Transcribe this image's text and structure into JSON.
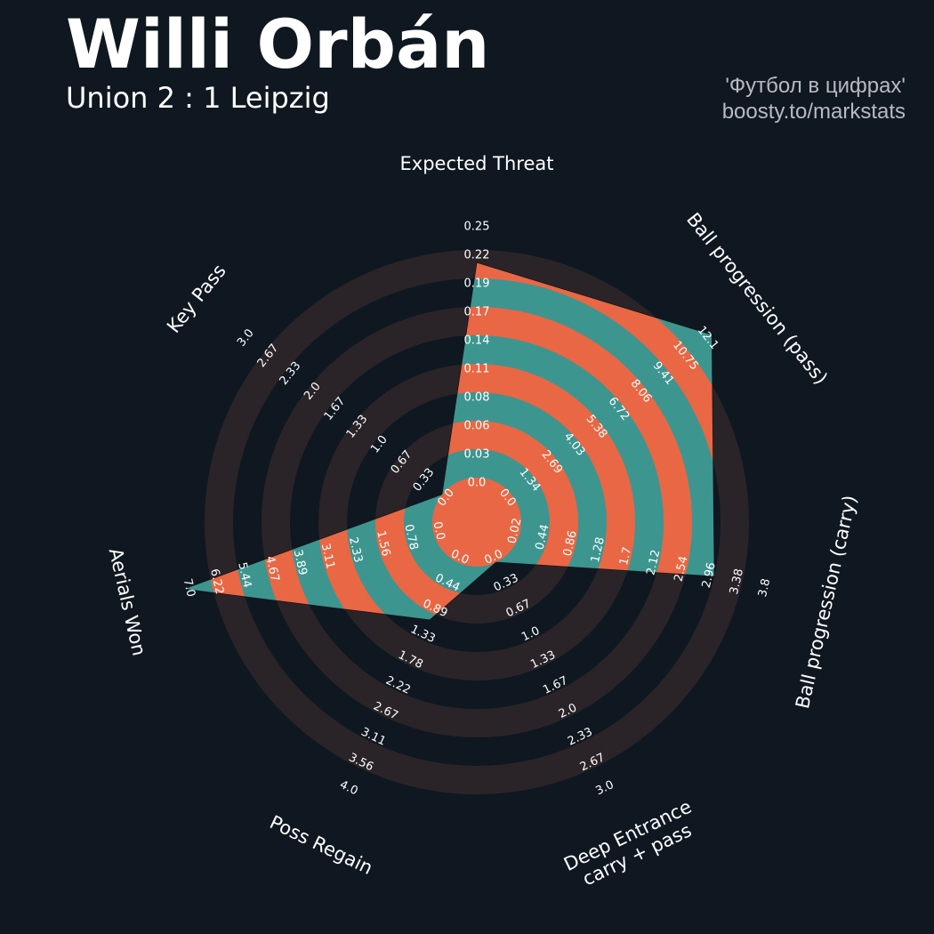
{
  "header": {
    "title": "Willi Orbán",
    "subtitle": "Union 2 : 1 Leipzig",
    "credit_line1": "'Футбол в цифрах'",
    "credit_line2": "boosty.to/markstats"
  },
  "colors": {
    "background": "#0f1820",
    "ring": "#2a2429",
    "band_a": "#e96744",
    "band_b": "#3d9590",
    "text": "#ffffff"
  },
  "chart_data": {
    "type": "radar",
    "title": "Willi Orbán",
    "subtitle": "Union 2 : 1 Leipzig",
    "player": "Willi Orbán",
    "match": "Union 2 : 1 Leipzig",
    "metrics": [
      {
        "label": "Expected Threat",
        "value": 0.21,
        "min": 0.0,
        "max": 0.25,
        "ticks": [
          "0.0",
          "0.03",
          "0.06",
          "0.08",
          "0.11",
          "0.14",
          "0.17",
          "0.19",
          "0.22",
          "0.25"
        ]
      },
      {
        "label": "Ball progression (pass)",
        "value": 12.1,
        "min": 0.0,
        "max": 12.1,
        "ticks": [
          "0.0",
          "1.34",
          "2.69",
          "4.03",
          "5.38",
          "6.72",
          "8.06",
          "9.41",
          "10.75",
          "12.1"
        ]
      },
      {
        "label": "Ball progression (carry)",
        "value": 2.96,
        "min": 0.02,
        "max": 3.8,
        "ticks": [
          "0.02",
          "0.44",
          "0.86",
          "1.28",
          "1.7",
          "2.12",
          "2.54",
          "2.96",
          "3.38",
          "3.8"
        ]
      },
      {
        "label": "Deep Entrance\ncarry + pass",
        "value": 0.0,
        "min": 0.0,
        "max": 3.0,
        "ticks": [
          "0.0",
          "0.33",
          "0.67",
          "1.0",
          "1.33",
          "1.67",
          "2.0",
          "2.33",
          "2.67",
          "3.0"
        ]
      },
      {
        "label": "Poss Regain",
        "value": 1.0,
        "min": 0.0,
        "max": 4.0,
        "ticks": [
          "0.0",
          "0.44",
          "0.89",
          "1.33",
          "1.78",
          "2.22",
          "2.67",
          "3.11",
          "3.56",
          "4.0"
        ]
      },
      {
        "label": "Aerials Won",
        "value": 7.0,
        "min": 0.0,
        "max": 7.0,
        "ticks": [
          "0.0",
          "0.78",
          "1.56",
          "2.33",
          "3.11",
          "3.89",
          "4.67",
          "5.44",
          "6.22",
          "7.0"
        ]
      },
      {
        "label": "Key Pass",
        "value": 0.0,
        "min": 0.0,
        "max": 3.0,
        "ticks": [
          "0.0",
          "0.33",
          "0.67",
          "1.0",
          "1.33",
          "1.67",
          "2.0",
          "2.33",
          "2.67",
          "3.0"
        ]
      }
    ]
  }
}
